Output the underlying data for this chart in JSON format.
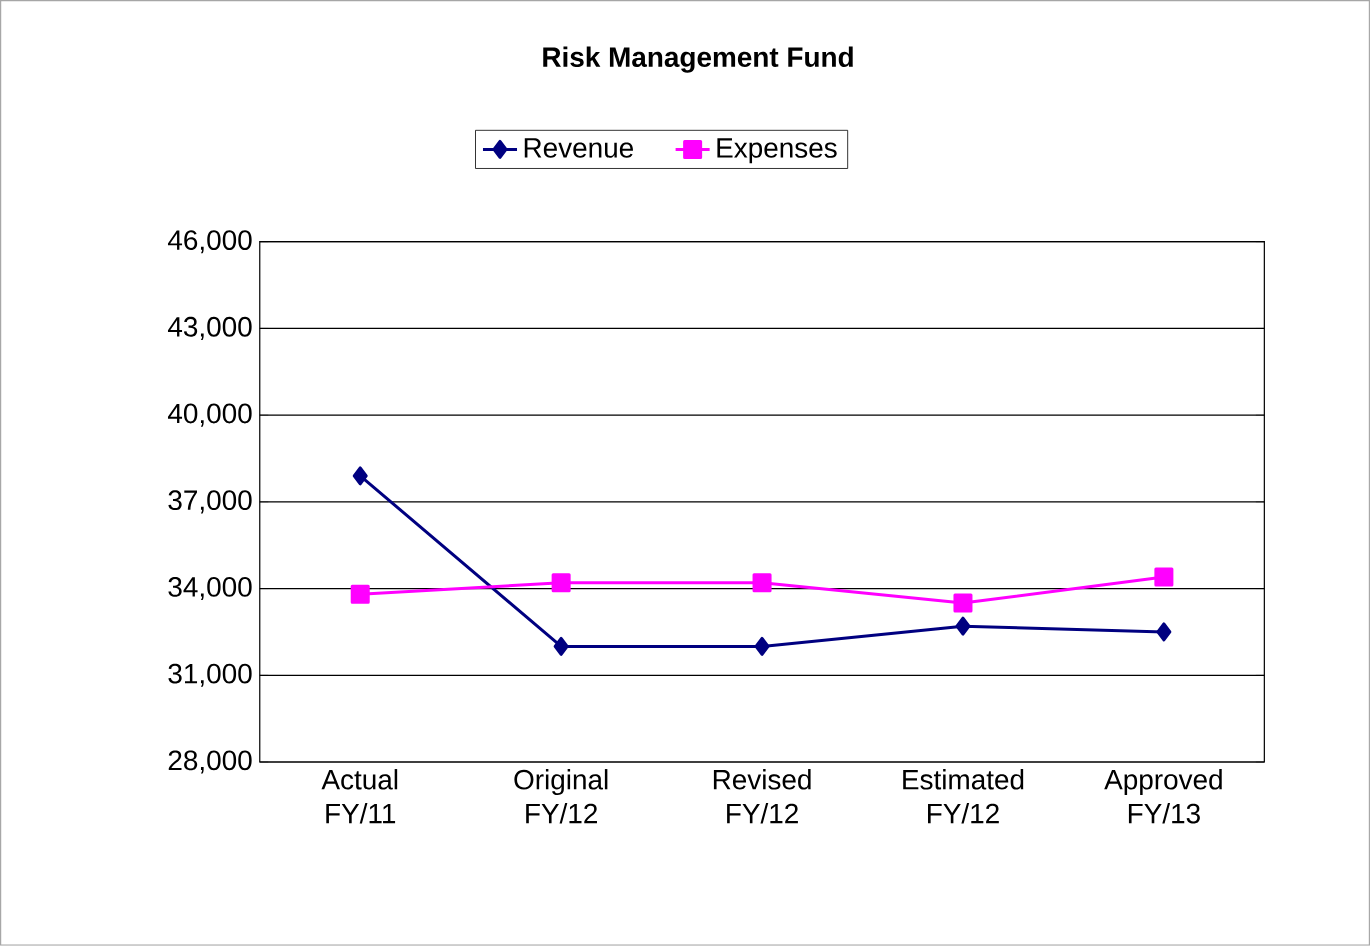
{
  "chart_data": {
    "type": "line",
    "title": "Risk Management Fund",
    "categories": [
      "Actual FY/11",
      "Original FY/12",
      "Revised FY/12",
      "Estimated FY/12",
      "Approved FY/13"
    ],
    "series": [
      {
        "name": "Revenue",
        "color": "#000080",
        "marker": "diamond",
        "values": [
          37900,
          32000,
          32000,
          32700,
          32500
        ]
      },
      {
        "name": "Expenses",
        "color": "#ff00ff",
        "marker": "square",
        "values": [
          33800,
          34200,
          34200,
          33500,
          34400
        ]
      }
    ],
    "ylim": [
      28000,
      46000
    ],
    "yticks": [
      {
        "value": 28000,
        "label": "28,000"
      },
      {
        "value": 31000,
        "label": "31,000"
      },
      {
        "value": 34000,
        "label": "34,000"
      },
      {
        "value": 37000,
        "label": "37,000"
      },
      {
        "value": 40000,
        "label": "40,000"
      },
      {
        "value": 43000,
        "label": "43,000"
      },
      {
        "value": 46000,
        "label": "46,000"
      }
    ],
    "grid": "y",
    "legend": "top",
    "line_style": "solid"
  }
}
